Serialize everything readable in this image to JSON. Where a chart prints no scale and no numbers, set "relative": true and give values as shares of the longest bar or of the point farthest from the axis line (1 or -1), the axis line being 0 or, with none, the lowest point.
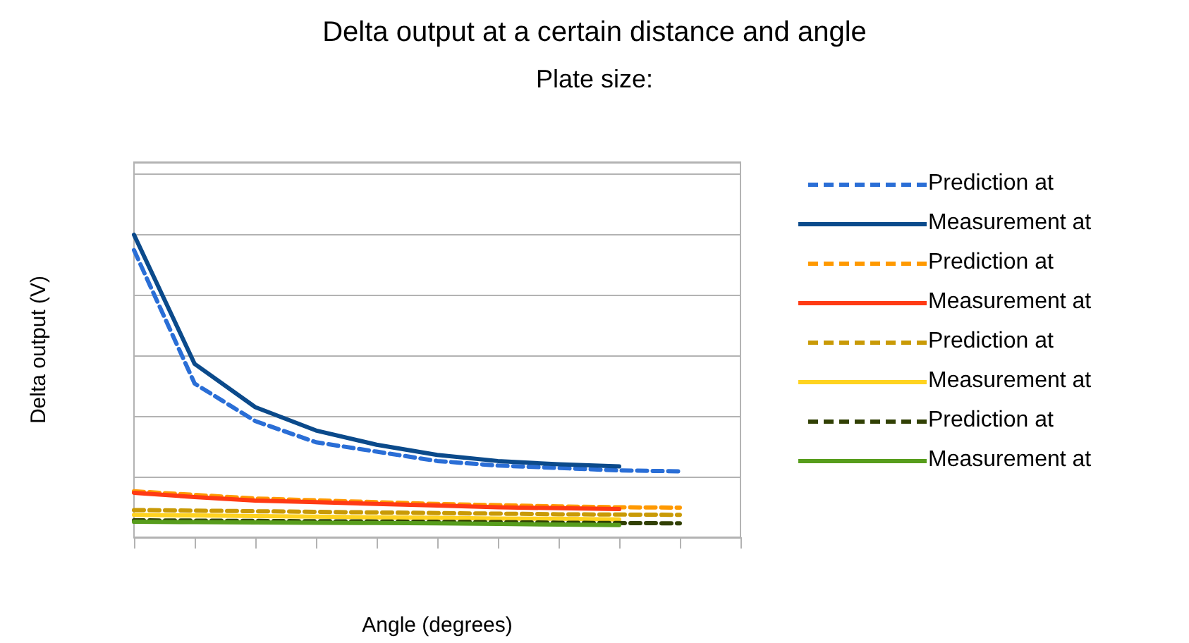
{
  "chart_data": {
    "type": "line",
    "title": "Delta output at a certain distance and angle",
    "subtitle": "Plate size:",
    "xlabel": "Angle (degrees)",
    "ylabel": "Delta output (V)",
    "relative": true,
    "grid": "y",
    "legend": "right",
    "marker": "none",
    "categories": [
      null,
      null,
      null,
      null,
      null,
      null,
      null,
      null,
      null,
      null,
      null
    ],
    "series": [
      {
        "name": "Prediction at",
        "color": "#2a6ed6",
        "line_style": "dashed",
        "values": [
          0.949,
          0.508,
          0.384,
          0.314,
          0.283,
          0.252,
          0.237,
          0.229,
          0.221,
          0.218,
          null
        ]
      },
      {
        "name": "Measurement at",
        "color": "#0b4a8b",
        "line_style": "solid",
        "values": [
          1,
          0.573,
          0.43,
          0.353,
          0.306,
          0.272,
          0.252,
          0.241,
          0.234,
          null,
          null
        ]
      },
      {
        "name": "Prediction at",
        "color": "#ff9900",
        "line_style": "dashed",
        "values": [
          0.152,
          0.14,
          0.128,
          0.122,
          0.116,
          0.11,
          0.106,
          0.102,
          0.099,
          0.098,
          null
        ]
      },
      {
        "name": "Measurement at",
        "color": "#ff3a14",
        "line_style": "solid",
        "values": [
          0.147,
          0.133,
          0.121,
          0.116,
          0.11,
          0.105,
          0.099,
          0.096,
          0.093,
          null,
          null
        ]
      },
      {
        "name": "Prediction at",
        "color": "#c99a06",
        "line_style": "dashed",
        "values": [
          0.09,
          0.088,
          0.086,
          0.084,
          0.082,
          0.08,
          0.078,
          0.076,
          0.075,
          0.074,
          null
        ]
      },
      {
        "name": "Measurement at",
        "color": "#ffd320",
        "line_style": "solid",
        "values": [
          0.074,
          0.072,
          0.07,
          0.068,
          0.066,
          0.064,
          0.062,
          0.061,
          0.059,
          null,
          null
        ]
      },
      {
        "name": "Prediction at",
        "color": "#314004",
        "line_style": "dashed",
        "values": [
          0.056,
          0.055,
          0.054,
          0.053,
          0.052,
          0.051,
          0.05,
          0.048,
          0.047,
          0.046,
          null
        ]
      },
      {
        "name": "Measurement at",
        "color": "#579d1c",
        "line_style": "solid",
        "values": [
          0.051,
          0.05,
          0.049,
          0.048,
          0.047,
          0.046,
          0.044,
          0.042,
          0.04,
          null,
          null
        ]
      }
    ]
  }
}
